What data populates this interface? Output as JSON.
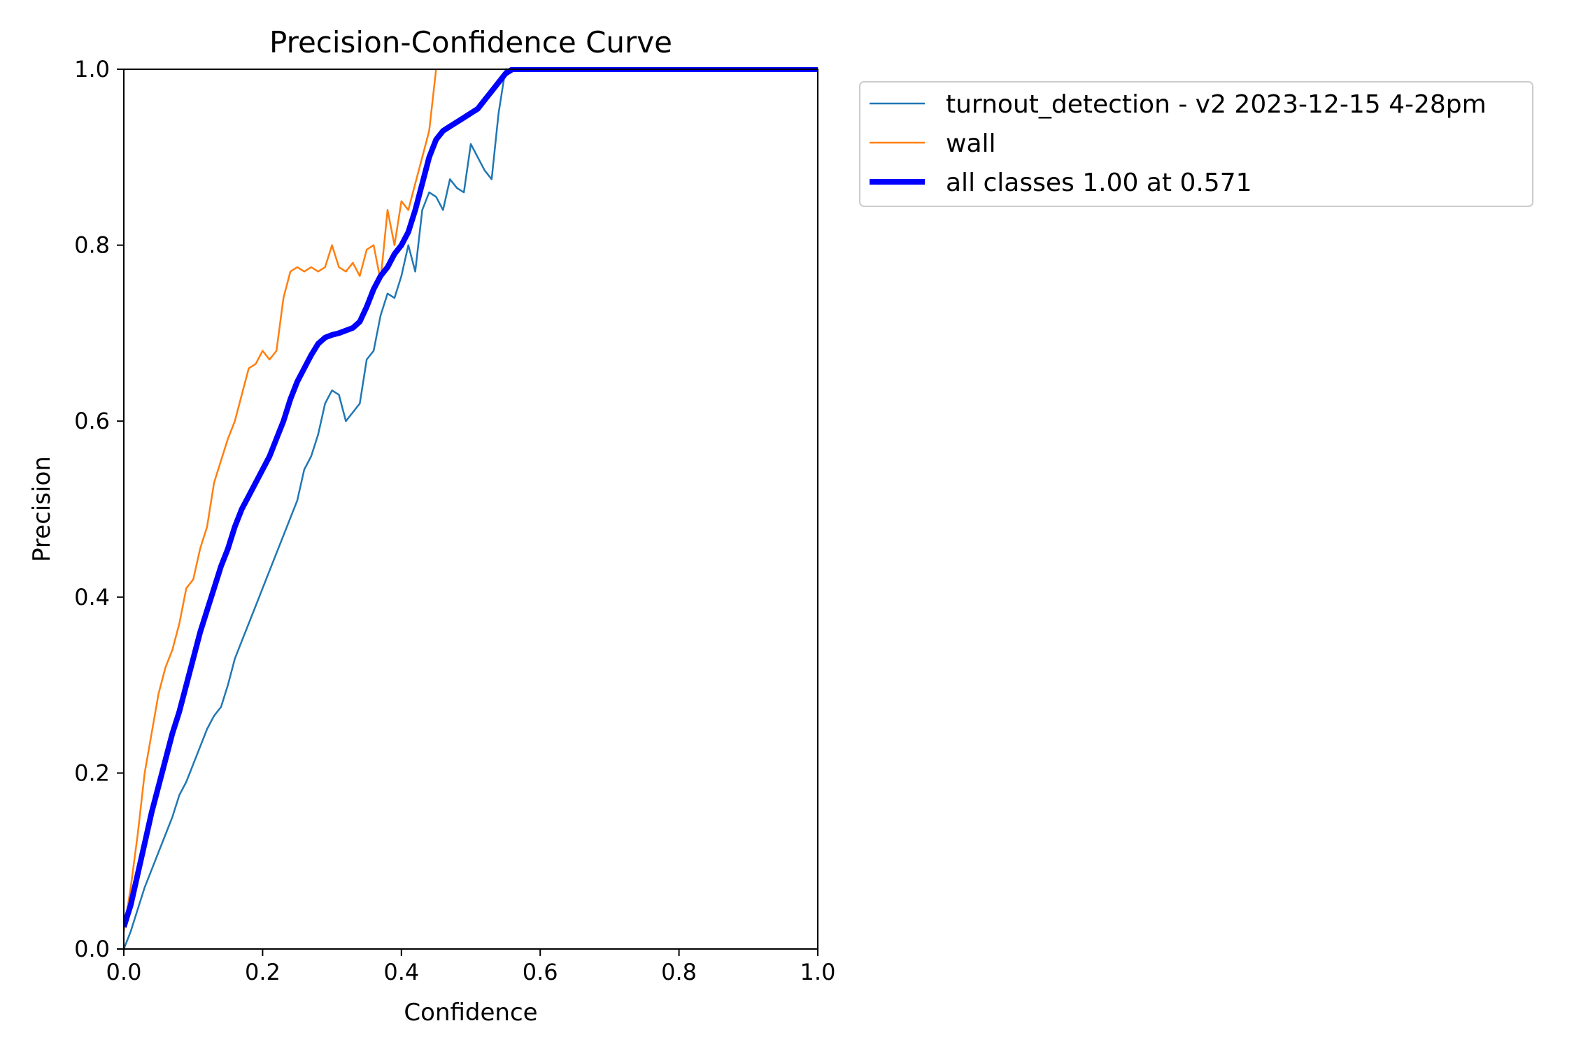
{
  "chart_data": {
    "type": "line",
    "title": "Precision-Confidence Curve",
    "xlabel": "Confidence",
    "ylabel": "Precision",
    "xlim": [
      0.0,
      1.0
    ],
    "ylim": [
      0.0,
      1.0
    ],
    "xticks": [
      "0.0",
      "0.2",
      "0.4",
      "0.6",
      "0.8",
      "1.0"
    ],
    "yticks": [
      "0.0",
      "0.2",
      "0.4",
      "0.6",
      "0.8",
      "1.0"
    ],
    "grid": false,
    "legend_position": "outside-upper-right",
    "series": [
      {
        "name": "turnout_detection - v2 2023-12-15 4-28pm",
        "color": "#1f77b4",
        "width": "thin",
        "points": [
          [
            0.0,
            0.0
          ],
          [
            0.01,
            0.02
          ],
          [
            0.02,
            0.045
          ],
          [
            0.03,
            0.07
          ],
          [
            0.04,
            0.09
          ],
          [
            0.05,
            0.11
          ],
          [
            0.06,
            0.13
          ],
          [
            0.07,
            0.15
          ],
          [
            0.08,
            0.175
          ],
          [
            0.09,
            0.19
          ],
          [
            0.1,
            0.21
          ],
          [
            0.11,
            0.23
          ],
          [
            0.12,
            0.25
          ],
          [
            0.13,
            0.265
          ],
          [
            0.14,
            0.275
          ],
          [
            0.15,
            0.3
          ],
          [
            0.16,
            0.33
          ],
          [
            0.17,
            0.35
          ],
          [
            0.18,
            0.37
          ],
          [
            0.19,
            0.39
          ],
          [
            0.2,
            0.41
          ],
          [
            0.21,
            0.43
          ],
          [
            0.22,
            0.45
          ],
          [
            0.23,
            0.47
          ],
          [
            0.24,
            0.49
          ],
          [
            0.25,
            0.51
          ],
          [
            0.26,
            0.545
          ],
          [
            0.27,
            0.56
          ],
          [
            0.28,
            0.585
          ],
          [
            0.29,
            0.62
          ],
          [
            0.3,
            0.635
          ],
          [
            0.31,
            0.63
          ],
          [
            0.32,
            0.6
          ],
          [
            0.33,
            0.61
          ],
          [
            0.34,
            0.62
          ],
          [
            0.35,
            0.67
          ],
          [
            0.36,
            0.68
          ],
          [
            0.37,
            0.72
          ],
          [
            0.38,
            0.745
          ],
          [
            0.39,
            0.74
          ],
          [
            0.4,
            0.765
          ],
          [
            0.41,
            0.8
          ],
          [
            0.42,
            0.77
          ],
          [
            0.43,
            0.84
          ],
          [
            0.44,
            0.86
          ],
          [
            0.45,
            0.855
          ],
          [
            0.46,
            0.84
          ],
          [
            0.47,
            0.875
          ],
          [
            0.48,
            0.865
          ],
          [
            0.49,
            0.86
          ],
          [
            0.5,
            0.915
          ],
          [
            0.51,
            0.9
          ],
          [
            0.52,
            0.885
          ],
          [
            0.53,
            0.875
          ],
          [
            0.54,
            0.95
          ],
          [
            0.55,
            1.0
          ],
          [
            1.0,
            1.0
          ]
        ]
      },
      {
        "name": "wall",
        "color": "#ff7f0e",
        "width": "thin",
        "points": [
          [
            0.0,
            0.02
          ],
          [
            0.01,
            0.07
          ],
          [
            0.02,
            0.13
          ],
          [
            0.03,
            0.2
          ],
          [
            0.04,
            0.245
          ],
          [
            0.05,
            0.29
          ],
          [
            0.06,
            0.32
          ],
          [
            0.07,
            0.34
          ],
          [
            0.08,
            0.37
          ],
          [
            0.09,
            0.41
          ],
          [
            0.1,
            0.42
          ],
          [
            0.11,
            0.455
          ],
          [
            0.12,
            0.48
          ],
          [
            0.13,
            0.53
          ],
          [
            0.14,
            0.555
          ],
          [
            0.15,
            0.58
          ],
          [
            0.16,
            0.6
          ],
          [
            0.17,
            0.63
          ],
          [
            0.18,
            0.66
          ],
          [
            0.19,
            0.665
          ],
          [
            0.2,
            0.68
          ],
          [
            0.21,
            0.67
          ],
          [
            0.22,
            0.68
          ],
          [
            0.23,
            0.74
          ],
          [
            0.24,
            0.77
          ],
          [
            0.25,
            0.775
          ],
          [
            0.26,
            0.77
          ],
          [
            0.27,
            0.775
          ],
          [
            0.28,
            0.77
          ],
          [
            0.29,
            0.775
          ],
          [
            0.3,
            0.8
          ],
          [
            0.31,
            0.775
          ],
          [
            0.32,
            0.77
          ],
          [
            0.33,
            0.78
          ],
          [
            0.34,
            0.765
          ],
          [
            0.35,
            0.795
          ],
          [
            0.36,
            0.8
          ],
          [
            0.37,
            0.76
          ],
          [
            0.38,
            0.84
          ],
          [
            0.39,
            0.8
          ],
          [
            0.4,
            0.85
          ],
          [
            0.41,
            0.84
          ],
          [
            0.42,
            0.87
          ],
          [
            0.43,
            0.9
          ],
          [
            0.44,
            0.93
          ],
          [
            0.45,
            1.0
          ]
        ]
      },
      {
        "name": "all classes 1.00 at 0.571",
        "color": "#0000ff",
        "width": "thick",
        "points": [
          [
            0.0,
            0.025
          ],
          [
            0.01,
            0.05
          ],
          [
            0.02,
            0.085
          ],
          [
            0.03,
            0.12
          ],
          [
            0.04,
            0.155
          ],
          [
            0.05,
            0.185
          ],
          [
            0.06,
            0.215
          ],
          [
            0.07,
            0.245
          ],
          [
            0.08,
            0.27
          ],
          [
            0.09,
            0.3
          ],
          [
            0.1,
            0.33
          ],
          [
            0.11,
            0.36
          ],
          [
            0.12,
            0.385
          ],
          [
            0.13,
            0.41
          ],
          [
            0.14,
            0.435
          ],
          [
            0.15,
            0.455
          ],
          [
            0.16,
            0.48
          ],
          [
            0.17,
            0.5
          ],
          [
            0.18,
            0.515
          ],
          [
            0.19,
            0.53
          ],
          [
            0.2,
            0.545
          ],
          [
            0.21,
            0.56
          ],
          [
            0.22,
            0.58
          ],
          [
            0.23,
            0.6
          ],
          [
            0.24,
            0.625
          ],
          [
            0.25,
            0.645
          ],
          [
            0.26,
            0.66
          ],
          [
            0.27,
            0.675
          ],
          [
            0.28,
            0.688
          ],
          [
            0.29,
            0.695
          ],
          [
            0.3,
            0.698
          ],
          [
            0.31,
            0.7
          ],
          [
            0.32,
            0.703
          ],
          [
            0.33,
            0.706
          ],
          [
            0.34,
            0.713
          ],
          [
            0.35,
            0.73
          ],
          [
            0.36,
            0.75
          ],
          [
            0.37,
            0.765
          ],
          [
            0.38,
            0.775
          ],
          [
            0.39,
            0.79
          ],
          [
            0.4,
            0.8
          ],
          [
            0.41,
            0.815
          ],
          [
            0.42,
            0.84
          ],
          [
            0.43,
            0.87
          ],
          [
            0.44,
            0.9
          ],
          [
            0.45,
            0.92
          ],
          [
            0.46,
            0.93
          ],
          [
            0.47,
            0.935
          ],
          [
            0.48,
            0.94
          ],
          [
            0.49,
            0.945
          ],
          [
            0.5,
            0.95
          ],
          [
            0.51,
            0.955
          ],
          [
            0.52,
            0.965
          ],
          [
            0.53,
            0.975
          ],
          [
            0.54,
            0.985
          ],
          [
            0.55,
            0.995
          ],
          [
            0.56,
            1.0
          ],
          [
            1.0,
            1.0
          ]
        ]
      }
    ]
  }
}
